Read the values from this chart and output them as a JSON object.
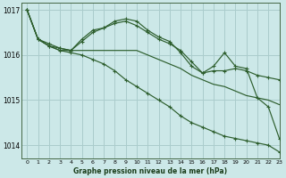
{
  "title": "Graphe pression niveau de la mer (hPa)",
  "background_color": "#cce8e8",
  "grid_color": "#aacccc",
  "line_color": "#2d5e2d",
  "xlim": [
    -0.5,
    23
  ],
  "ylim": [
    1013.7,
    1017.15
  ],
  "yticks": [
    1014,
    1015,
    1016,
    1017
  ],
  "xticks": [
    0,
    1,
    2,
    3,
    4,
    5,
    6,
    7,
    8,
    9,
    10,
    11,
    12,
    13,
    14,
    15,
    16,
    17,
    18,
    19,
    20,
    21,
    22,
    23
  ],
  "series": [
    {
      "y": [
        1017.0,
        1016.35,
        1016.2,
        1016.1,
        1016.1,
        1016.1,
        1016.1,
        1016.1,
        1016.1,
        1016.1,
        1016.1,
        1016.0,
        1015.9,
        1015.8,
        1015.7,
        1015.55,
        1015.45,
        1015.35,
        1015.3,
        1015.2,
        1015.1,
        1015.05,
        1015.0,
        1014.9
      ],
      "marker": false
    },
    {
      "y": [
        1017.0,
        1016.35,
        1016.2,
        1016.15,
        1016.1,
        1016.35,
        1016.55,
        1016.6,
        1016.7,
        1016.75,
        1016.65,
        1016.5,
        1016.35,
        1016.25,
        1016.1,
        1015.85,
        1015.6,
        1015.65,
        1015.65,
        1015.7,
        1015.65,
        1015.55,
        1015.5,
        1015.45
      ],
      "marker": true
    },
    {
      "y": [
        1017.0,
        1016.35,
        1016.25,
        1016.15,
        1016.1,
        1016.3,
        1016.5,
        1016.6,
        1016.75,
        1016.8,
        1016.75,
        1016.55,
        1016.4,
        1016.3,
        1016.05,
        1015.75,
        1015.6,
        1015.75,
        1016.05,
        1015.75,
        1015.7,
        1015.05,
        1014.85,
        1014.15
      ],
      "marker": true
    },
    {
      "y": [
        1017.0,
        1016.35,
        1016.2,
        1016.1,
        1016.05,
        1016.0,
        1015.9,
        1015.8,
        1015.65,
        1015.45,
        1015.3,
        1015.15,
        1015.0,
        1014.85,
        1014.65,
        1014.5,
        1014.4,
        1014.3,
        1014.2,
        1014.15,
        1014.1,
        1014.05,
        1014.0,
        1013.85
      ],
      "marker": true
    }
  ]
}
